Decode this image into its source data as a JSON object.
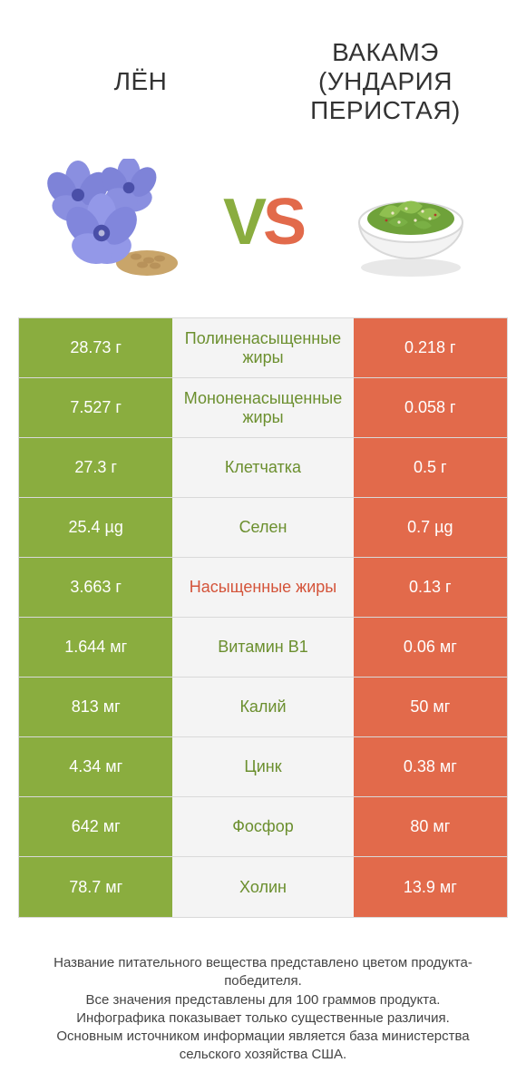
{
  "titles": {
    "left": "ЛЁН",
    "right": "ВАКАМЭ (УНДАРИЯ ПЕРИСТАЯ)"
  },
  "vs": {
    "v": "V",
    "s": "S"
  },
  "colors": {
    "green": "#8aad3f",
    "orange": "#e26a4b",
    "mid_bg": "#f4f4f4",
    "border": "#d9d9d9",
    "text_green": "#6b8f2e",
    "text_orange": "#d4543a",
    "flax_petal": "#8a8fe0",
    "flax_petal_dark": "#6f74cf",
    "flax_center": "#4a4fa8",
    "seed": "#c9a56a",
    "bowl": "#f3f3f3",
    "bowl_shadow": "#d8d8d8",
    "wakame1": "#6fa23a",
    "wakame2": "#8fc050",
    "wakame_sesame": "#efe6c8"
  },
  "rows": [
    {
      "left": "28.73 г",
      "mid": "Полиненасыщенные жиры",
      "right": "0.218 г",
      "winner": "left"
    },
    {
      "left": "7.527 г",
      "mid": "Мононенасыщенные жиры",
      "right": "0.058 г",
      "winner": "left"
    },
    {
      "left": "27.3 г",
      "mid": "Клетчатка",
      "right": "0.5 г",
      "winner": "left"
    },
    {
      "left": "25.4 µg",
      "mid": "Селен",
      "right": "0.7 µg",
      "winner": "left"
    },
    {
      "left": "3.663 г",
      "mid": "Насыщенные жиры",
      "right": "0.13 г",
      "winner": "right"
    },
    {
      "left": "1.644 мг",
      "mid": "Витамин B1",
      "right": "0.06 мг",
      "winner": "left"
    },
    {
      "left": "813 мг",
      "mid": "Калий",
      "right": "50 мг",
      "winner": "left"
    },
    {
      "left": "4.34 мг",
      "mid": "Цинк",
      "right": "0.38 мг",
      "winner": "left"
    },
    {
      "left": "642 мг",
      "mid": "Фосфор",
      "right": "80 мг",
      "winner": "left"
    },
    {
      "left": "78.7 мг",
      "mid": "Холин",
      "right": "13.9 мг",
      "winner": "left"
    }
  ],
  "footnote": {
    "l1": "Название питательного вещества представлено цветом продукта-победителя.",
    "l2": "Все значения представлены для 100 граммов продукта.",
    "l3": "Инфографика показывает только существенные различия.",
    "l4": "Основным источником информации является база министерства сельского хозяйства США."
  }
}
